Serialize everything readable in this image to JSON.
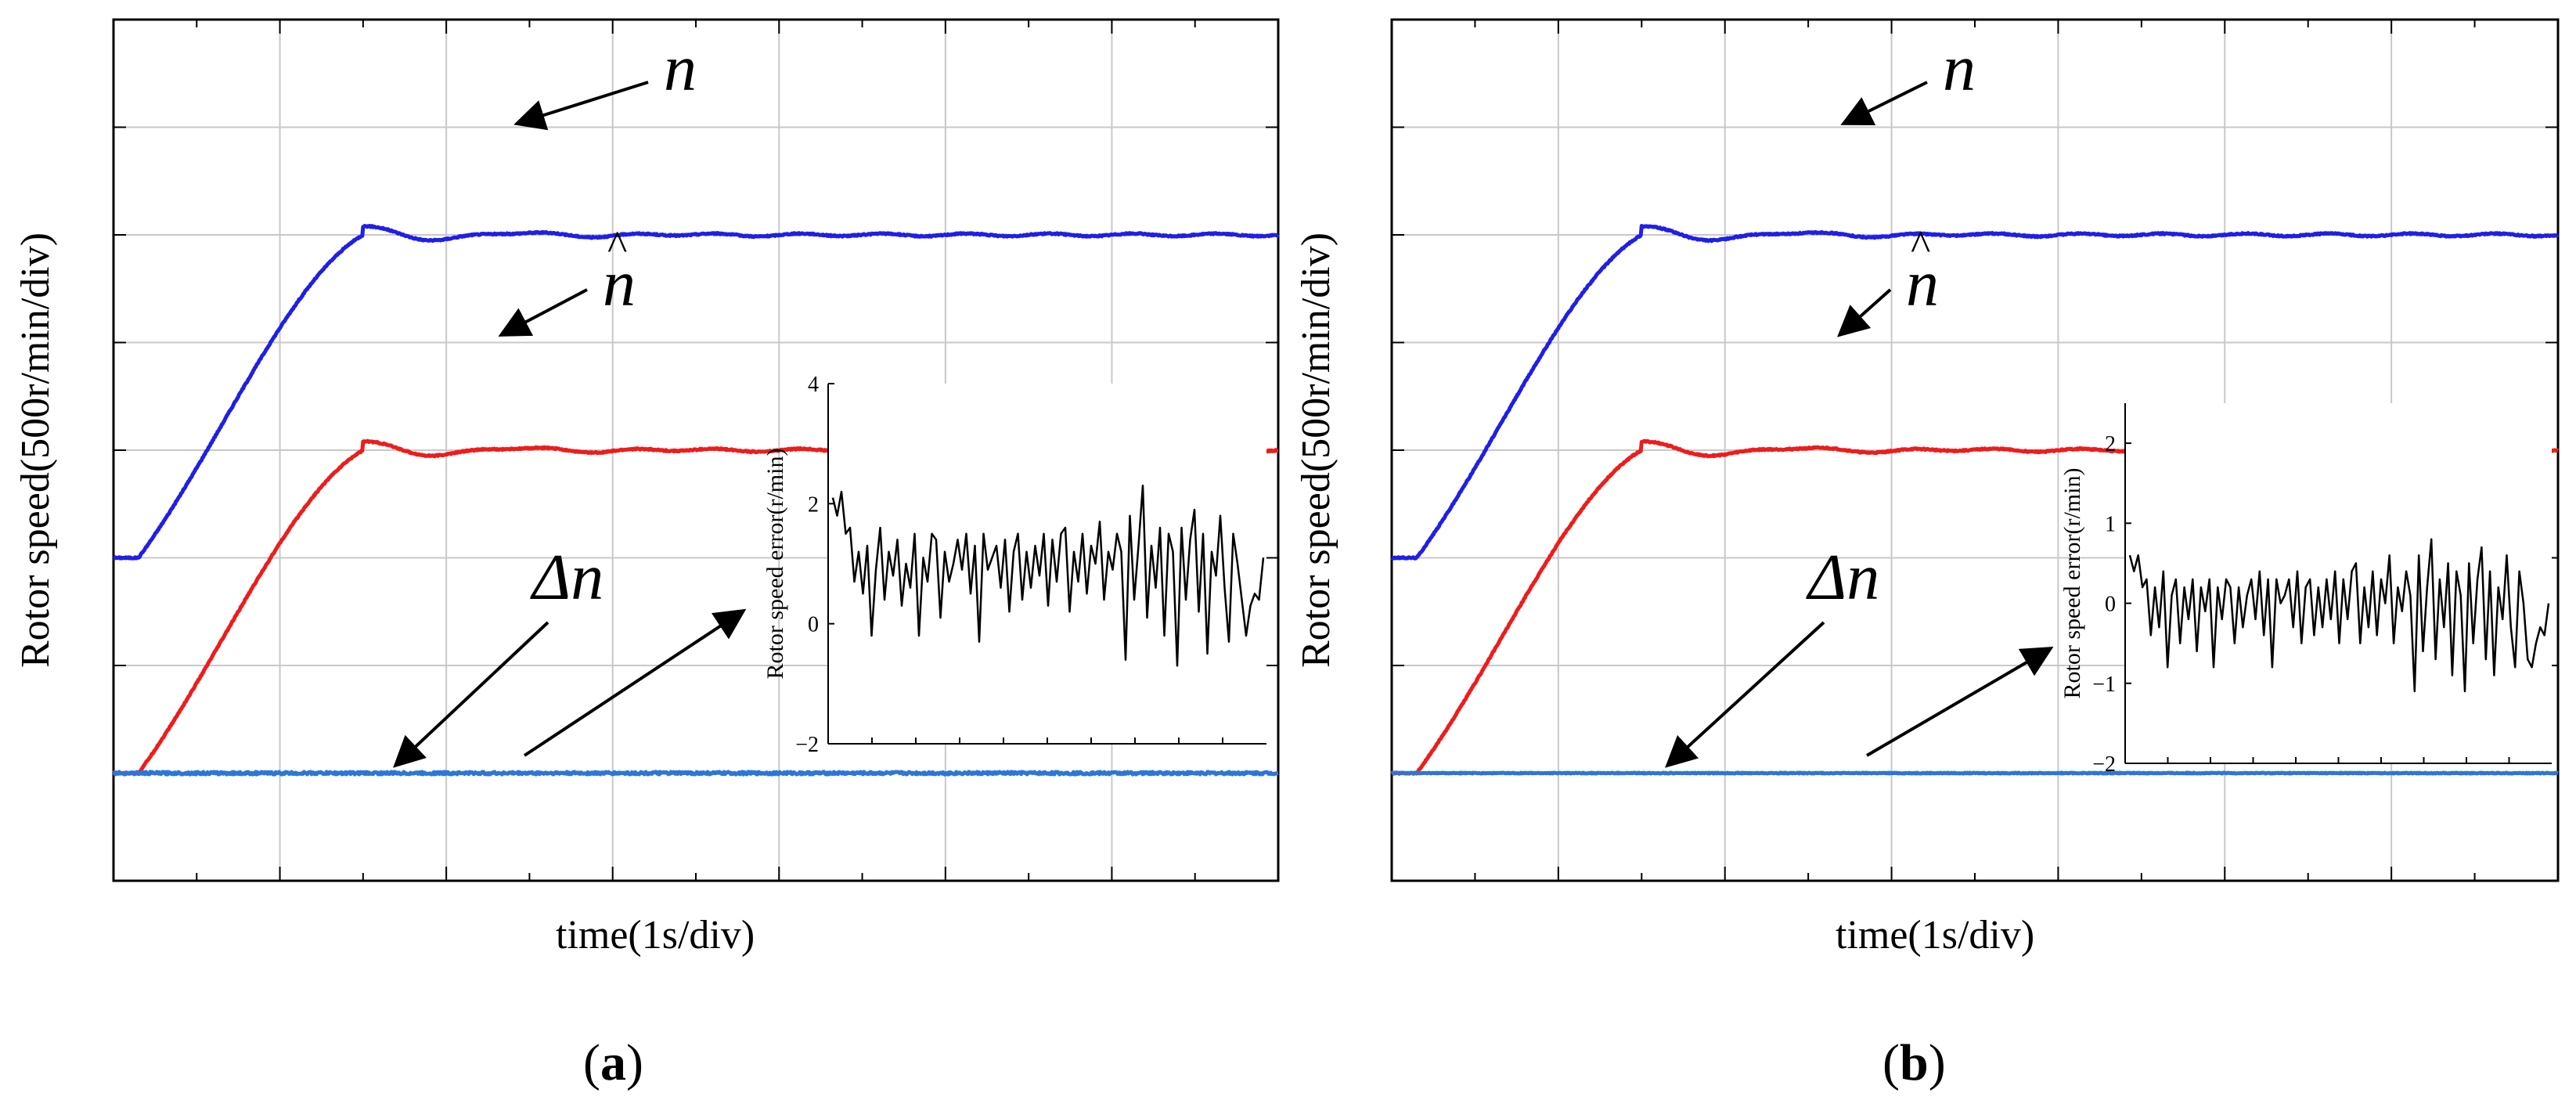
{
  "figure": {
    "panels": [
      {
        "caption_letter": "a",
        "xlabel": "time(1s/div)",
        "ylabel": "Rotor speed(500r/min/div)",
        "labels": {
          "n": "n",
          "n_hat": "n",
          "n_hat_accent": "^",
          "delta": "Δn"
        },
        "inset": {
          "ylabel": "Rotor speed error(r/min)",
          "ticks": [
            "4",
            "2",
            "0",
            "−2"
          ]
        }
      },
      {
        "caption_letter": "b",
        "xlabel": "time(1s/div)",
        "ylabel": "Rotor speed(500r/min/div)",
        "labels": {
          "n": "n",
          "n_hat": "n",
          "n_hat_accent": "^",
          "delta": "Δn"
        },
        "inset": {
          "ylabel": "Rotor speed error(r/min)",
          "ticks": [
            "2",
            "1",
            "0",
            "−1",
            "−2"
          ]
        }
      }
    ]
  },
  "chart_data": [
    {
      "type": "line",
      "panel": "a",
      "title": "",
      "xlabel": "time(1s/div)",
      "ylabel": "Rotor speed(500r/min/div)",
      "xlim": [
        0,
        7
      ],
      "ylim": [
        -4,
        4
      ],
      "x_div": 1,
      "y_div": 1,
      "grid": true,
      "series": [
        {
          "name": "n",
          "color": "#1f1fe6",
          "offset_div": -1,
          "steady_rise_div": 3,
          "ramp_start": 0.15,
          "ramp_end": 1.5,
          "overshoot_div": 0.08
        },
        {
          "name": "n̂",
          "color": "#ee1c1c",
          "offset_div": -3,
          "steady_rise_div": 3,
          "ramp_start": 0.15,
          "ramp_end": 1.5,
          "overshoot_div": 0.08
        },
        {
          "name": "Δn",
          "color": "#2e76d6",
          "offset_div": -3,
          "steady_rise_div": 0,
          "noise_div": 0.012
        }
      ],
      "inset": {
        "type": "line",
        "ylabel": "Rotor speed error(r/min)",
        "ylim": [
          -2,
          4
        ],
        "yticks": [
          -2,
          0,
          2,
          4
        ],
        "values": [
          2.1,
          1.8,
          2.2,
          1.5,
          1.6,
          0.7,
          1.2,
          0.5,
          1.3,
          -0.2,
          0.9,
          1.6,
          0.4,
          1.2,
          0.8,
          1.4,
          0.3,
          1.0,
          0.6,
          1.5,
          -0.2,
          1.1,
          0.7,
          1.5,
          1.4,
          0.1,
          1.2,
          0.7,
          1.0,
          1.4,
          0.9,
          1.5,
          0.5,
          1.3,
          -0.3,
          1.5,
          0.9,
          1.1,
          1.3,
          0.6,
          1.4,
          0.2,
          1.2,
          1.5,
          0.4,
          1.2,
          0.6,
          1.3,
          0.8,
          1.5,
          0.3,
          1.4,
          0.7,
          1.5,
          1.6,
          0.2,
          1.2,
          0.7,
          1.5,
          0.5,
          1.3,
          1.0,
          1.7,
          0.4,
          1.2,
          0.9,
          1.5,
          1.2,
          -0.6,
          1.8,
          0.4,
          1.3,
          2.3,
          0.1,
          1.3,
          0.6,
          1.6,
          -0.2,
          1.5,
          1.2,
          -0.7,
          1.6,
          0.4,
          1.4,
          1.9,
          0.2,
          1.5,
          -0.5,
          1.2,
          0.8,
          1.8,
          0.6,
          -0.3,
          1.5,
          1.0,
          0.4,
          -0.2,
          0.3,
          0.5,
          0.4,
          1.1
        ]
      }
    },
    {
      "type": "line",
      "panel": "b",
      "title": "",
      "xlabel": "time(1s/div)",
      "ylabel": "Rotor speed(500r/min/div)",
      "xlim": [
        0,
        7
      ],
      "ylim": [
        -4,
        4
      ],
      "x_div": 1,
      "y_div": 1,
      "grid": true,
      "series": [
        {
          "name": "n",
          "color": "#1f1fe6",
          "offset_div": -1,
          "steady_rise_div": 3,
          "ramp_start": 0.15,
          "ramp_end": 1.5,
          "overshoot_div": 0.08
        },
        {
          "name": "n̂",
          "color": "#ee1c1c",
          "offset_div": -3,
          "steady_rise_div": 3,
          "ramp_start": 0.15,
          "ramp_end": 1.5,
          "overshoot_div": 0.08
        },
        {
          "name": "Δn",
          "color": "#2e76d6",
          "offset_div": -3,
          "steady_rise_div": 0,
          "noise_div": 0.004
        }
      ],
      "inset": {
        "type": "line",
        "ylabel": "Rotor speed error(r/min)",
        "ylim": [
          -2,
          2.5
        ],
        "yticks": [
          -2,
          -1,
          0,
          1,
          2
        ],
        "values": [
          0.6,
          0.4,
          0.6,
          0.2,
          0.3,
          -0.4,
          0.2,
          -0.3,
          0.4,
          -0.8,
          0.1,
          0.3,
          -0.5,
          0.2,
          -0.2,
          0.3,
          -0.6,
          0.2,
          -0.1,
          0.3,
          -0.8,
          0.2,
          -0.2,
          0.3,
          0.2,
          -0.5,
          0.2,
          -0.3,
          0.1,
          0.3,
          -0.2,
          0.4,
          -0.4,
          0.3,
          -0.8,
          0.3,
          0.0,
          0.1,
          0.3,
          -0.3,
          0.4,
          -0.5,
          0.2,
          0.3,
          -0.4,
          0.2,
          -0.3,
          0.3,
          -0.2,
          0.4,
          -0.5,
          0.3,
          -0.2,
          0.4,
          0.5,
          -0.5,
          0.2,
          -0.3,
          0.4,
          -0.4,
          0.3,
          0.0,
          0.6,
          -0.5,
          0.2,
          -0.1,
          0.4,
          0.1,
          -1.1,
          0.6,
          -0.6,
          0.2,
          0.8,
          -0.7,
          0.3,
          -0.3,
          0.5,
          -0.9,
          0.4,
          0.1,
          -1.1,
          0.5,
          -0.5,
          0.3,
          0.7,
          -0.7,
          0.4,
          -0.9,
          0.2,
          -0.2,
          0.6,
          -0.3,
          -0.8,
          0.4,
          0.0,
          -0.7,
          -0.8,
          -0.5,
          -0.3,
          -0.4,
          0.0
        ]
      }
    }
  ]
}
